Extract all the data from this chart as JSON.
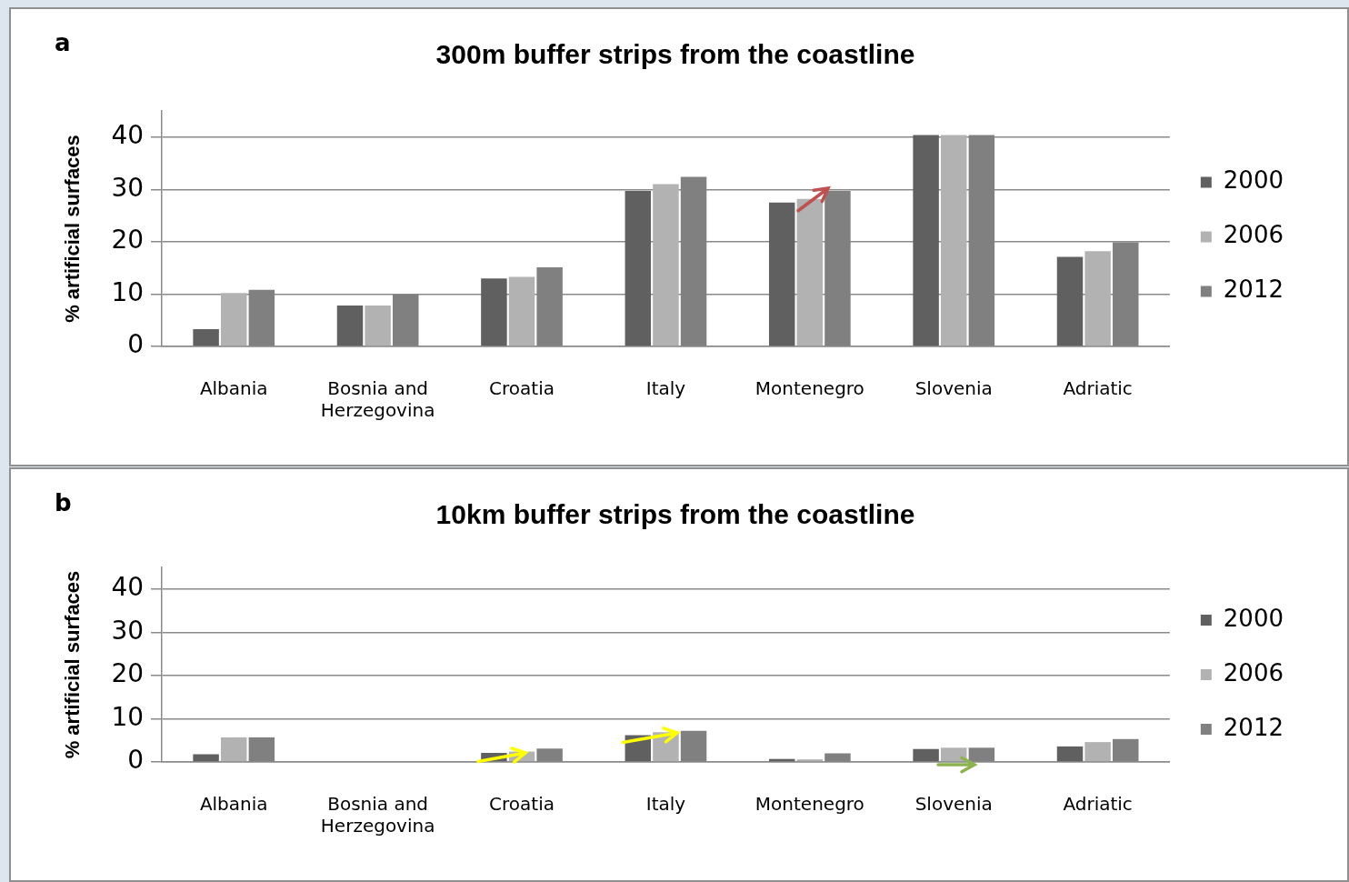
{
  "chart_data": [
    {
      "type": "bar",
      "title": "300m buffer strips from the coastline",
      "ylabel": "% artificial surfaces",
      "annotations": [
        "a"
      ],
      "categories": [
        "Albania",
        "Bosnia and Herzegovina",
        "Croatia",
        "Italy",
        "Montenegro",
        "Slovenia",
        "Adriatic"
      ],
      "series": [
        {
          "name": "2000",
          "color": "#606060",
          "values": [
            3.3,
            7.8,
            13.0,
            29.7,
            27.5,
            40.4,
            17.1
          ]
        },
        {
          "name": "2006",
          "color": "#b2b2b2",
          "values": [
            10.2,
            7.8,
            13.3,
            31.0,
            28.2,
            40.4,
            18.2
          ]
        },
        {
          "name": "2012",
          "color": "#808080",
          "values": [
            10.8,
            9.9,
            15.1,
            32.4,
            29.7,
            40.4,
            19.9
          ]
        }
      ],
      "ylim": [
        0,
        45
      ],
      "yticks": [
        0,
        10,
        20,
        30,
        40
      ],
      "grid": "y",
      "legend": "right"
    },
    {
      "type": "bar",
      "title": "10km buffer strips from the coastline",
      "ylabel": "% artificial surfaces",
      "annotations": [
        "b"
      ],
      "categories": [
        "Albania",
        "Bosnia and Herzegovina",
        "Croatia",
        "Italy",
        "Montenegro",
        "Slovenia",
        "Adriatic"
      ],
      "series": [
        {
          "name": "2000",
          "color": "#606060",
          "values": [
            1.8,
            0,
            2.1,
            6.2,
            0.7,
            3.0,
            3.6
          ]
        },
        {
          "name": "2006",
          "color": "#b2b2b2",
          "values": [
            5.7,
            0,
            2.4,
            6.9,
            0.6,
            3.3,
            4.6
          ]
        },
        {
          "name": "2012",
          "color": "#808080",
          "values": [
            5.7,
            0,
            3.1,
            7.2,
            2.0,
            3.3,
            5.3
          ]
        }
      ],
      "ylim": [
        0,
        45
      ],
      "yticks": [
        0,
        10,
        20,
        30,
        40
      ],
      "grid": "y",
      "legend": "right"
    }
  ]
}
